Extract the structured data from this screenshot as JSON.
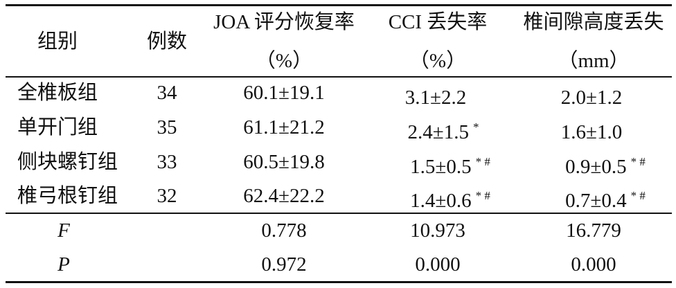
{
  "table": {
    "headers": {
      "group": "组别",
      "cases": "例数",
      "joa_line1": "JOA 评分恢复率",
      "joa_line2": "（%）",
      "cci_line1": "CCI 丢失率",
      "cci_line2": "（%）",
      "disc_line1": "椎间隙高度丢失",
      "disc_line2": "（mm）"
    },
    "rows": [
      {
        "group": "全椎板组",
        "cases": "34",
        "joa": "60.1±19.1",
        "cci": "3.1±2.2",
        "cci_mark": "",
        "disc": "2.0±1.2",
        "disc_mark": ""
      },
      {
        "group": "单开门组",
        "cases": "35",
        "joa": "61.1±21.2",
        "cci": "2.4±1.5",
        "cci_mark": "*",
        "disc": "1.6±1.0",
        "disc_mark": ""
      },
      {
        "group": "侧块螺钉组",
        "cases": "33",
        "joa": "60.5±19.8",
        "cci": "1.5±0.5",
        "cci_mark": "* #",
        "disc": "0.9±0.5",
        "disc_mark": "* #"
      },
      {
        "group": "椎弓根钉组",
        "cases": "32",
        "joa": "62.4±22.2",
        "cci": "1.4±0.6",
        "cci_mark": "* #",
        "disc": "0.7±0.4",
        "disc_mark": "* #"
      }
    ],
    "stats": [
      {
        "label": "F",
        "joa": "0.778",
        "cci": "10.973",
        "disc": "16.779"
      },
      {
        "label": "P",
        "joa": "0.972",
        "cci": "0.000",
        "disc": "0.000"
      }
    ]
  }
}
